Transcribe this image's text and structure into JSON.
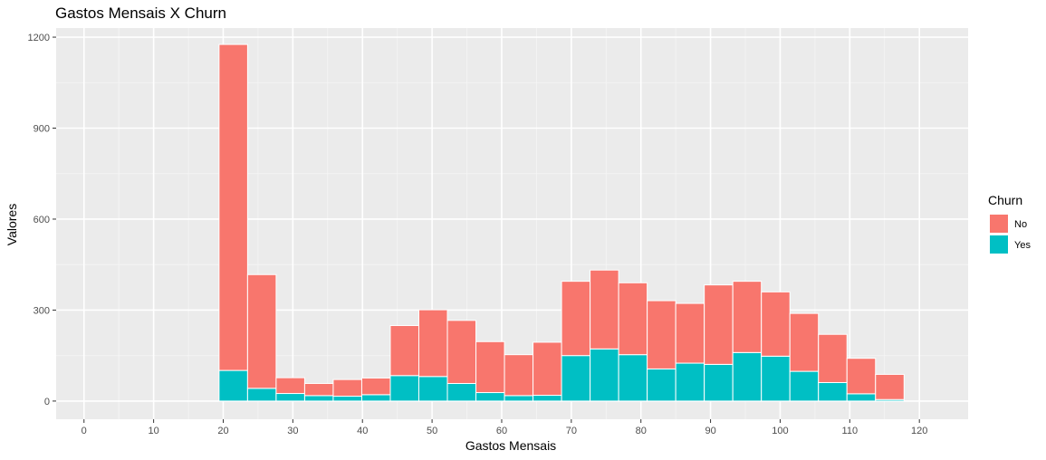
{
  "chart_data": {
    "type": "bar",
    "chart_kind": "stacked histogram",
    "title": "Gastos Mensais X Churn",
    "xlabel": "Gastos Mensais",
    "ylabel": "Valores",
    "xlim": [
      -4,
      127
    ],
    "ylim": [
      -60,
      1230
    ],
    "x_ticks": [
      0,
      10,
      20,
      30,
      40,
      50,
      60,
      70,
      80,
      90,
      100,
      110,
      120
    ],
    "y_ticks": [
      0,
      300,
      600,
      900,
      1200
    ],
    "grid": true,
    "legend": {
      "title": "Churn",
      "placement": "right"
    },
    "bins": [
      {
        "x0": -1.12,
        "x1": 3.0
      },
      {
        "x0": 3.0,
        "x1": 7.1
      },
      {
        "x0": 7.1,
        "x1": 11.2
      },
      {
        "x0": 11.2,
        "x1": 15.3
      },
      {
        "x0": 15.3,
        "x1": 19.4
      },
      {
        "x0": 19.4,
        "x1": 23.5
      },
      {
        "x0": 23.5,
        "x1": 27.6
      },
      {
        "x0": 27.6,
        "x1": 31.7
      },
      {
        "x0": 31.7,
        "x1": 35.8
      },
      {
        "x0": 35.8,
        "x1": 39.9
      },
      {
        "x0": 39.9,
        "x1": 44.0
      },
      {
        "x0": 44.0,
        "x1": 48.1
      },
      {
        "x0": 48.1,
        "x1": 52.2
      },
      {
        "x0": 52.2,
        "x1": 56.3
      },
      {
        "x0": 56.3,
        "x1": 60.4
      },
      {
        "x0": 60.4,
        "x1": 64.5
      },
      {
        "x0": 64.5,
        "x1": 68.6
      },
      {
        "x0": 68.6,
        "x1": 72.7
      },
      {
        "x0": 72.7,
        "x1": 76.8
      },
      {
        "x0": 76.8,
        "x1": 80.9
      },
      {
        "x0": 80.9,
        "x1": 85.0
      },
      {
        "x0": 85.0,
        "x1": 89.1
      },
      {
        "x0": 89.1,
        "x1": 93.2
      },
      {
        "x0": 93.2,
        "x1": 97.3
      },
      {
        "x0": 97.3,
        "x1": 101.4
      },
      {
        "x0": 101.4,
        "x1": 105.5
      },
      {
        "x0": 105.5,
        "x1": 109.6
      },
      {
        "x0": 109.6,
        "x1": 113.7
      },
      {
        "x0": 113.7,
        "x1": 117.8
      },
      {
        "x0": 117.8,
        "x1": 121.9
      }
    ],
    "series": [
      {
        "name": "No",
        "color": "#F8766D",
        "values": [
          0,
          0,
          0,
          0,
          0,
          1075,
          375,
          52,
          40,
          55,
          55,
          165,
          220,
          208,
          168,
          135,
          175,
          245,
          260,
          237,
          225,
          197,
          262,
          235,
          212,
          191,
          159,
          117,
          83,
          0
        ]
      },
      {
        "name": "Yes",
        "color": "#00BFC4",
        "values": [
          0,
          0,
          0,
          0,
          0,
          101,
          42,
          25,
          18,
          16,
          21,
          84,
          81,
          58,
          28,
          18,
          19,
          150,
          172,
          153,
          106,
          125,
          121,
          160,
          148,
          98,
          61,
          24,
          5,
          0
        ]
      }
    ]
  }
}
